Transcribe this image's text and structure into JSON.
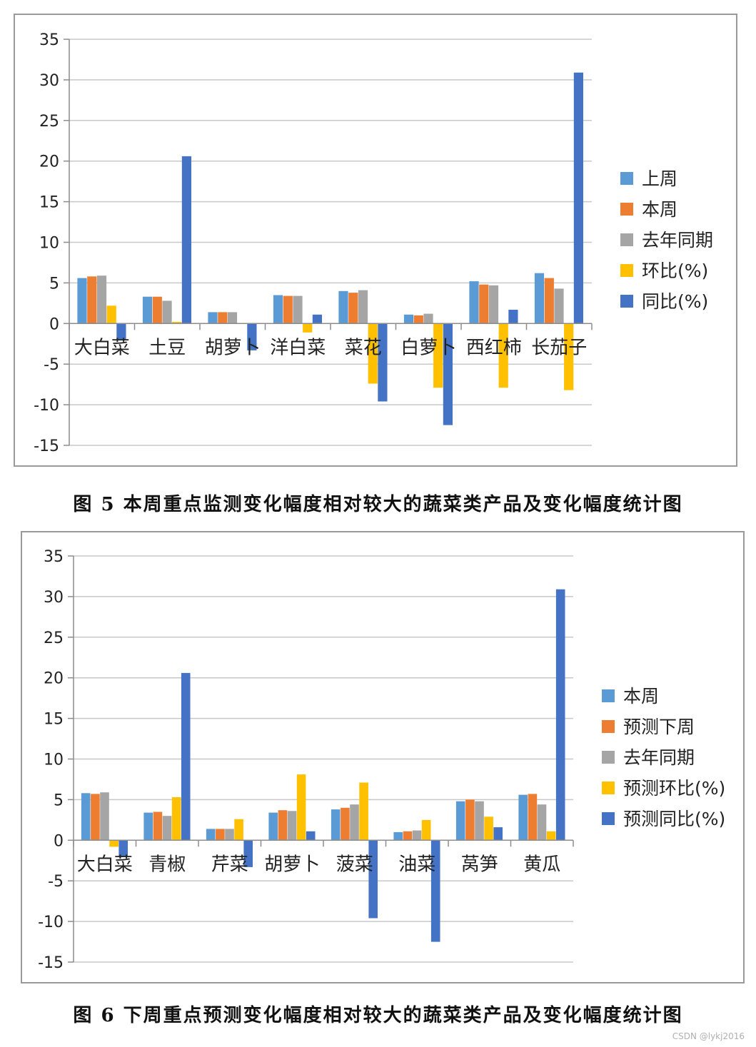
{
  "colors": {
    "series": [
      "#5b9bd5",
      "#ed7d31",
      "#a5a5a5",
      "#ffc000",
      "#4472c4"
    ],
    "grid": "#c8c8c8",
    "axis": "#8c8c8c"
  },
  "chart_data": [
    {
      "type": "bar",
      "categories": [
        "大白菜",
        "土豆",
        "胡萝卜",
        "洋白菜",
        "菜花",
        "白萝卜",
        "西红柿",
        "长茄子"
      ],
      "series": [
        {
          "name": "上周",
          "values": [
            5.6,
            3.3,
            1.4,
            3.5,
            4.0,
            1.1,
            5.2,
            6.2
          ]
        },
        {
          "name": "本周",
          "values": [
            5.8,
            3.3,
            1.4,
            3.4,
            3.8,
            1.0,
            4.8,
            5.6
          ]
        },
        {
          "name": "去年同期",
          "values": [
            5.9,
            2.8,
            1.4,
            3.4,
            4.1,
            1.2,
            4.7,
            4.3
          ]
        },
        {
          "name": "环比(%)",
          "values": [
            2.2,
            0.2,
            0.0,
            -1.1,
            -7.4,
            -7.9,
            -7.9,
            -8.2
          ]
        },
        {
          "name": "同比(%)",
          "values": [
            -2.0,
            20.6,
            -3.3,
            1.1,
            -9.6,
            -12.5,
            1.7,
            30.9
          ]
        }
      ],
      "yticks": [
        35,
        30,
        25,
        20,
        15,
        10,
        5,
        0,
        -5,
        -10,
        -15
      ],
      "ylim": [
        -15,
        35
      ],
      "grid": true,
      "legend": "right",
      "caption": "图 5 本周重点监测变化幅度相对较大的蔬菜类产品及变化幅度统计图"
    },
    {
      "type": "bar",
      "categories": [
        "大白菜",
        "青椒",
        "芹菜",
        "胡萝卜",
        "菠菜",
        "油菜",
        "莴笋",
        "黄瓜"
      ],
      "series": [
        {
          "name": "本周",
          "values": [
            5.8,
            3.4,
            1.4,
            3.4,
            3.8,
            1.0,
            4.8,
            5.6
          ]
        },
        {
          "name": "预测下周",
          "values": [
            5.7,
            3.5,
            1.4,
            3.7,
            4.0,
            1.1,
            5.0,
            5.7
          ]
        },
        {
          "name": "去年同期",
          "values": [
            5.9,
            3.0,
            1.4,
            3.6,
            4.4,
            1.2,
            4.8,
            4.4
          ]
        },
        {
          "name": "预测环比(%)",
          "values": [
            -0.8,
            5.3,
            2.6,
            8.1,
            7.1,
            2.5,
            2.9,
            1.1
          ]
        },
        {
          "name": "预测同比(%)",
          "values": [
            -2.0,
            20.6,
            -3.3,
            1.1,
            -9.6,
            -12.5,
            1.6,
            30.9
          ]
        }
      ],
      "yticks": [
        35,
        30,
        25,
        20,
        15,
        10,
        5,
        0,
        -5,
        -10,
        -15
      ],
      "ylim": [
        -15,
        35
      ],
      "grid": true,
      "legend": "right",
      "caption": "图 6 下周重点预测变化幅度相对较大的蔬菜类产品及变化幅度统计图"
    }
  ],
  "watermark": "CSDN @lykj2016"
}
